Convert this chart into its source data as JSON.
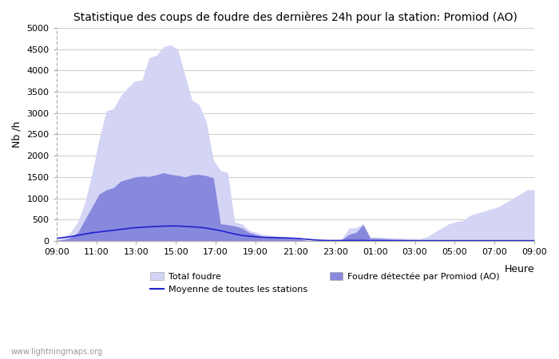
{
  "title": "Statistique des coups de foudre des dernières 24h pour la station: Promiod (AO)",
  "xlabel": "Heure",
  "ylabel": "Nb /h",
  "ylim": [
    0,
    5000
  ],
  "yticks": [
    0,
    500,
    1000,
    1500,
    2000,
    2500,
    3000,
    3500,
    4000,
    4500,
    5000
  ],
  "x_labels": [
    "09:00",
    "11:00",
    "13:00",
    "15:00",
    "17:00",
    "19:00",
    "21:00",
    "23:00",
    "01:00",
    "03:00",
    "05:00",
    "07:00",
    "09:00"
  ],
  "background_color": "#ffffff",
  "plot_bg_color": "#ffffff",
  "grid_color": "#cccccc",
  "color_total": "#d4d4f5",
  "color_detected": "#8888dd",
  "color_mean": "#2222cc",
  "watermark": "www.lightningmaps.org",
  "legend_total": "Total foudre",
  "legend_detected": "Foudre détectée par Promiod (AO)",
  "legend_mean": "Moyenne de toutes les stations",
  "total_foudre": [
    30,
    80,
    200,
    450,
    900,
    1600,
    2400,
    3050,
    3100,
    3400,
    3600,
    3750,
    3770,
    4300,
    4350,
    4550,
    4600,
    4500,
    3900,
    3300,
    3200,
    2800,
    1900,
    1650,
    1600,
    440,
    400,
    250,
    200,
    150,
    130,
    110,
    100,
    75,
    50,
    20,
    15,
    15,
    20,
    30,
    50,
    300,
    310,
    400,
    90,
    90,
    80,
    70,
    65,
    60,
    55,
    50,
    100,
    200,
    300,
    400,
    450,
    480,
    600,
    650,
    700,
    750,
    800,
    900,
    1000,
    1100,
    1200,
    1200
  ],
  "detected_foudre": [
    10,
    30,
    80,
    200,
    500,
    800,
    1100,
    1200,
    1250,
    1400,
    1450,
    1500,
    1520,
    1510,
    1550,
    1600,
    1560,
    1540,
    1500,
    1550,
    1560,
    1530,
    1480,
    400,
    380,
    350,
    300,
    200,
    150,
    100,
    90,
    80,
    70,
    60,
    50,
    10,
    10,
    10,
    10,
    15,
    30,
    150,
    200,
    380,
    60,
    60,
    50,
    40,
    35,
    30,
    25,
    20,
    20,
    20,
    20,
    20,
    20,
    20,
    20,
    20,
    20,
    20,
    20,
    20,
    20,
    20,
    20,
    20
  ],
  "mean_line": [
    60,
    80,
    100,
    130,
    160,
    190,
    210,
    230,
    250,
    270,
    290,
    310,
    320,
    330,
    340,
    345,
    350,
    348,
    340,
    330,
    320,
    300,
    270,
    240,
    200,
    160,
    130,
    110,
    95,
    85,
    80,
    75,
    70,
    65,
    55,
    40,
    25,
    15,
    10,
    8,
    7,
    10,
    10,
    10,
    5,
    5,
    5,
    5,
    5,
    5,
    5,
    5,
    5,
    5,
    5,
    5,
    5,
    5,
    5,
    5,
    5,
    5,
    5,
    5,
    5,
    5,
    5,
    5
  ]
}
